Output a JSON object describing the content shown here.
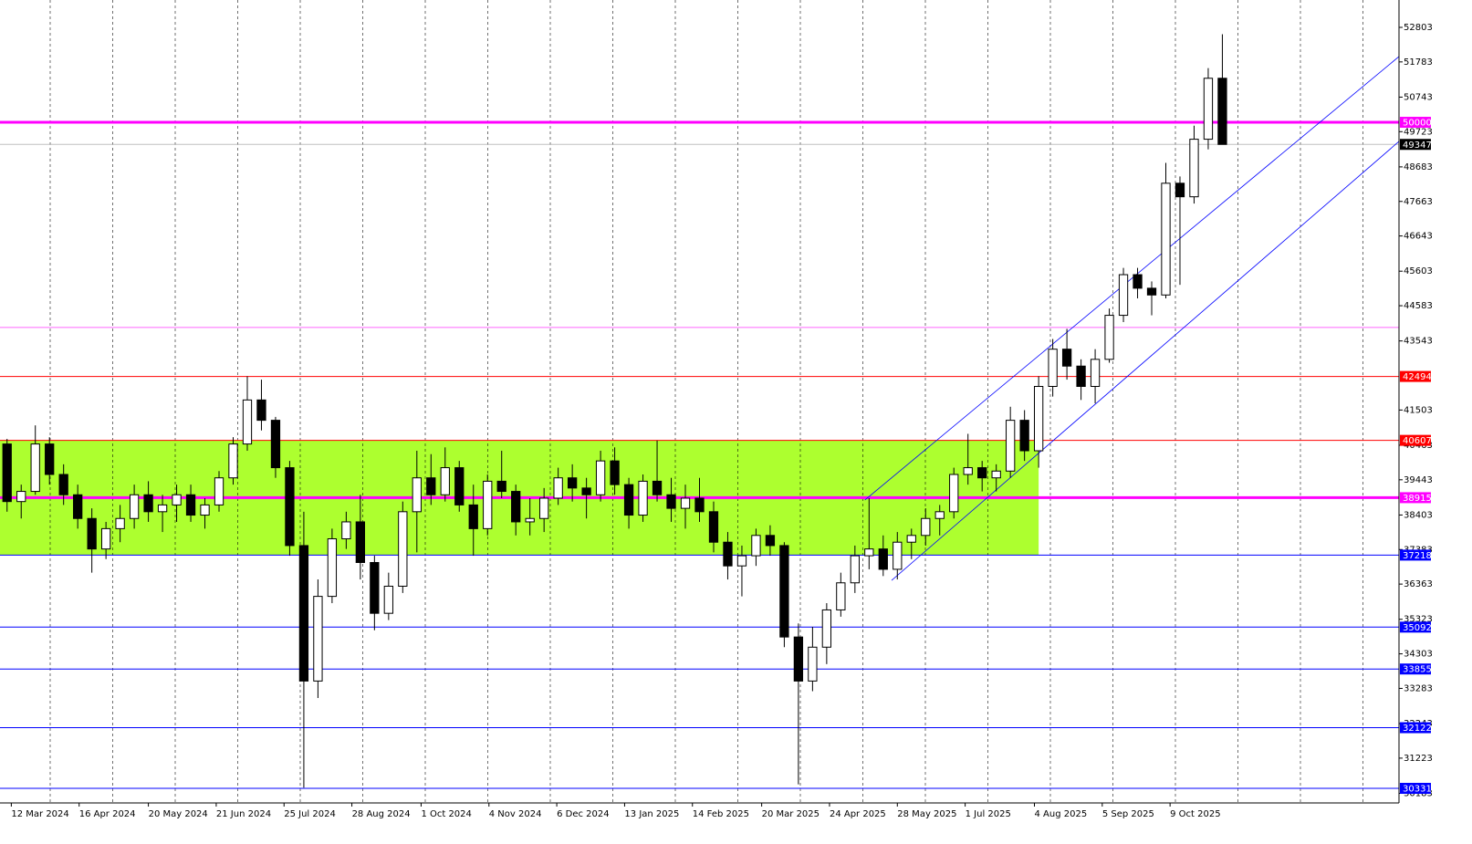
{
  "chart_data": {
    "type": "candlestick",
    "grid": true,
    "xlim": [
      -0.5,
      98.5
    ],
    "ylim": [
      29900,
      53611
    ],
    "xticks": [
      {
        "value": 0.3,
        "label": "12 Mar 2024"
      },
      {
        "value": 5.1,
        "label": "16 Apr 2024"
      },
      {
        "value": 10.0,
        "label": "20 May 2024"
      },
      {
        "value": 14.8,
        "label": "21 Jun 2024"
      },
      {
        "value": 19.6,
        "label": "25 Jul 2024"
      },
      {
        "value": 24.4,
        "label": "28 Aug 2024"
      },
      {
        "value": 29.3,
        "label": "1 Oct 2024"
      },
      {
        "value": 34.1,
        "label": "4 Nov 2024"
      },
      {
        "value": 38.9,
        "label": "6 Dec 2024"
      },
      {
        "value": 43.7,
        "label": "13 Jan 2025"
      },
      {
        "value": 48.5,
        "label": "14 Feb 2025"
      },
      {
        "value": 53.4,
        "label": "20 Mar 2025"
      },
      {
        "value": 58.2,
        "label": "24 Apr 2025"
      },
      {
        "value": 63.0,
        "label": "28 May 2025"
      },
      {
        "value": 67.8,
        "label": "1 Jul 2025"
      },
      {
        "value": 72.7,
        "label": "4 Aug 2025"
      },
      {
        "value": 77.5,
        "label": "5 Sep 2025"
      },
      {
        "value": 82.3,
        "label": "9 Oct 2025"
      }
    ],
    "yticks": [
      52803,
      51783,
      50743,
      49723,
      48683,
      47663,
      46643,
      45603,
      44583,
      43543,
      41503,
      40463,
      39443,
      38403,
      37383,
      36363,
      35323,
      34303,
      33283,
      32243,
      31223,
      30183
    ],
    "zone": {
      "from": 40607,
      "to": 37218,
      "x_end": 73.0,
      "color": "#adff2f"
    },
    "channels": [
      {
        "x": [
          62.6,
          98.5
        ],
        "y": [
          36474,
          49435
        ],
        "color": "#0000ff"
      },
      {
        "x": [
          60.7,
          98.5
        ],
        "y": [
          38845,
          51941
        ],
        "color": "#0000ff"
      }
    ],
    "levels": [
      {
        "value": 50000,
        "color": "#ff00ff",
        "width": 3,
        "tag": true
      },
      {
        "value": 49347,
        "color": "#c0c0c0",
        "width": 1,
        "tag": true,
        "tag_color": "#000000"
      },
      {
        "value": 43940,
        "color": "#ff66ff",
        "width": 1,
        "tag": false
      },
      {
        "value": 42494,
        "color": "#ff0000",
        "width": 1,
        "tag": true
      },
      {
        "value": 40607,
        "color": "#ff0000",
        "width": 1,
        "tag": true
      },
      {
        "value": 38915,
        "color": "#ff00ff",
        "width": 3,
        "tag": true
      },
      {
        "value": 37218,
        "color": "#0000ff",
        "width": 1,
        "tag": true
      },
      {
        "value": 35092,
        "color": "#0000ff",
        "width": 1,
        "tag": true
      },
      {
        "value": 33855,
        "color": "#0000ff",
        "width": 1,
        "tag": true
      },
      {
        "value": 32122,
        "color": "#0000ff",
        "width": 1,
        "tag": true
      },
      {
        "value": 30331,
        "color": "#0000ff",
        "width": 1,
        "tag": true
      }
    ],
    "x": [
      0,
      1,
      2,
      3,
      4,
      5,
      6,
      7,
      8,
      9,
      10,
      11,
      12,
      13,
      14,
      15,
      16,
      17,
      18,
      19,
      20,
      21,
      22,
      23,
      24,
      25,
      26,
      27,
      28,
      29,
      30,
      31,
      32,
      33,
      34,
      35,
      36,
      37,
      38,
      39,
      40,
      41,
      42,
      43,
      44,
      45,
      46,
      47,
      48,
      49,
      50,
      51,
      52,
      53,
      54,
      55,
      56,
      57,
      58,
      59,
      60,
      61,
      62,
      63,
      64,
      65,
      66,
      67,
      68,
      69,
      70,
      71,
      72,
      73,
      74,
      75,
      76,
      77,
      78,
      79,
      80,
      81,
      82,
      83,
      84,
      85,
      86
    ],
    "open": [
      40500,
      38800,
      39100,
      40500,
      39600,
      39000,
      38300,
      37400,
      38000,
      38300,
      39000,
      38500,
      38700,
      39000,
      38400,
      38700,
      39500,
      40500,
      41800,
      41200,
      39800,
      37500,
      33500,
      36000,
      37700,
      38200,
      37000,
      35500,
      36300,
      38500,
      39500,
      39000,
      39800,
      38700,
      38000,
      39400,
      39100,
      38200,
      38300,
      38900,
      39500,
      39200,
      39000,
      40000,
      39300,
      38400,
      39400,
      39000,
      38600,
      38900,
      38500,
      37600,
      36900,
      37200,
      37800,
      37500,
      34800,
      33500,
      34500,
      35600,
      36400,
      37200,
      37400,
      36800,
      37600,
      37800,
      38300,
      38500,
      39600,
      39800,
      39500,
      39700,
      41200,
      40300,
      42200,
      43300,
      42800,
      42200,
      43000,
      44300,
      45500,
      45100,
      44900,
      48200,
      47800,
      49500,
      51300
    ],
    "high": [
      40650,
      39300,
      41050,
      40700,
      39900,
      39300,
      38600,
      38200,
      38700,
      39300,
      39400,
      39000,
      39300,
      39300,
      38900,
      39700,
      40700,
      42500,
      42400,
      41300,
      40000,
      38500,
      36500,
      38000,
      38500,
      39000,
      37200,
      36700,
      38800,
      40300,
      40200,
      40400,
      40000,
      39300,
      39600,
      40300,
      39300,
      38900,
      39200,
      39800,
      39900,
      39500,
      40300,
      40400,
      39500,
      39600,
      40600,
      39500,
      39300,
      39500,
      38800,
      37900,
      37500,
      38000,
      38100,
      37600,
      35200,
      35100,
      35800,
      36700,
      37500,
      38900,
      37800,
      37900,
      38000,
      38600,
      38700,
      39800,
      40800,
      40000,
      39900,
      41600,
      41500,
      42500,
      43600,
      43900,
      43000,
      43300,
      44500,
      45700,
      45700,
      45300,
      48800,
      48400,
      49900,
      51600,
      52600
    ],
    "low": [
      38500,
      38300,
      39000,
      39300,
      38700,
      38000,
      36700,
      37100,
      37600,
      38000,
      38200,
      37900,
      38200,
      38200,
      38000,
      38500,
      39300,
      40300,
      40900,
      39500,
      37200,
      30350,
      33000,
      35800,
      37400,
      36500,
      35000,
      35300,
      36100,
      37300,
      38700,
      38800,
      38500,
      37200,
      37800,
      38900,
      37800,
      37800,
      37900,
      38700,
      38800,
      38300,
      38800,
      39000,
      38000,
      38200,
      38800,
      38200,
      38000,
      38200,
      37300,
      36500,
      36000,
      36900,
      37200,
      34500,
      30450,
      33200,
      34000,
      35400,
      36100,
      36800,
      36600,
      36500,
      37100,
      37500,
      37800,
      38300,
      39300,
      39100,
      39100,
      39500,
      40000,
      39800,
      41900,
      42400,
      41800,
      41700,
      42900,
      44100,
      44800,
      44300,
      44800,
      45200,
      47600,
      49200,
      49347
    ],
    "close": [
      38800,
      39100,
      40500,
      39600,
      39000,
      38300,
      37400,
      38000,
      38300,
      39000,
      38500,
      38700,
      39000,
      38400,
      38700,
      39500,
      40500,
      41800,
      41200,
      39800,
      37500,
      33500,
      36000,
      37700,
      38200,
      37000,
      35500,
      36300,
      38500,
      39500,
      39000,
      39800,
      38700,
      38000,
      39400,
      39100,
      38200,
      38300,
      38900,
      39500,
      39200,
      39000,
      40000,
      39300,
      38400,
      39400,
      39000,
      38600,
      38900,
      38500,
      37600,
      36900,
      37200,
      37800,
      37500,
      34800,
      33500,
      34500,
      35600,
      36400,
      37200,
      37400,
      36800,
      37600,
      37800,
      38300,
      38500,
      39600,
      39800,
      39500,
      39700,
      41200,
      40300,
      42200,
      43300,
      42800,
      42200,
      43000,
      44300,
      45500,
      45100,
      44900,
      48200,
      47800,
      49500,
      51300,
      49347
    ]
  }
}
